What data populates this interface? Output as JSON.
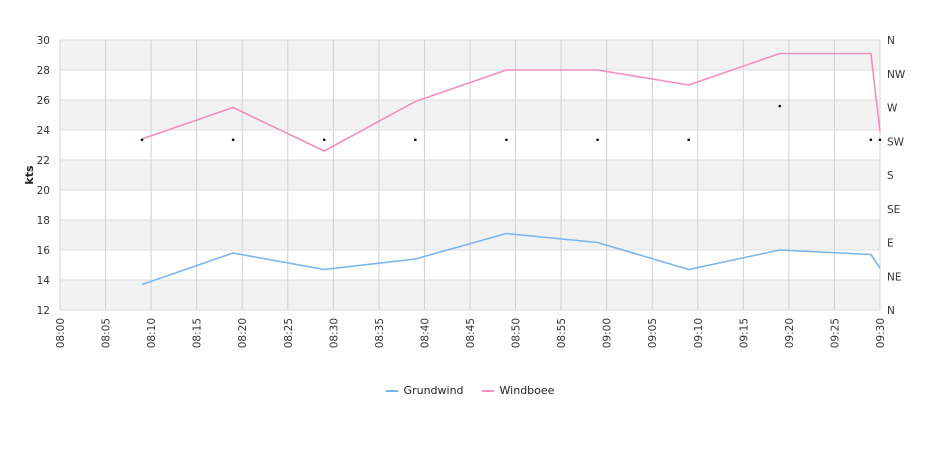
{
  "chart_data": {
    "type": "line",
    "ylabel": "kts",
    "ylim": [
      12,
      30
    ],
    "yticks": [
      12,
      14,
      16,
      18,
      20,
      22,
      24,
      26,
      28,
      30
    ],
    "xlim_minutes": [
      480,
      570
    ],
    "xticks": [
      "08:00",
      "08:05",
      "08:10",
      "08:15",
      "08:20",
      "08:25",
      "08:30",
      "08:35",
      "08:40",
      "08:45",
      "08:50",
      "08:55",
      "09:00",
      "09:05",
      "09:10",
      "09:15",
      "09:20",
      "09:25",
      "09:30"
    ],
    "grid": true,
    "right_axis": {
      "labels": [
        "N",
        "NW",
        "W",
        "SW",
        "S",
        "SE",
        "E",
        "NE",
        "N"
      ]
    },
    "x": [
      "08:09",
      "08:19",
      "08:29",
      "08:39",
      "08:49",
      "08:59",
      "09:09",
      "09:19",
      "09:29",
      "09:30"
    ],
    "series": [
      {
        "name": "Grundwind",
        "color": "#7cb5ec",
        "values": [
          13.7,
          15.8,
          14.7,
          15.4,
          17.1,
          16.5,
          14.7,
          16.0,
          15.7,
          14.8
        ]
      },
      {
        "name": "Windboee",
        "color": "#f28fbf",
        "values": [
          23.4,
          25.5,
          22.6,
          25.9,
          28.0,
          28.0,
          27.0,
          29.1,
          29.1,
          23.9
        ]
      }
    ],
    "direction_markers": {
      "x": [
        "08:09",
        "08:19",
        "08:29",
        "08:39",
        "08:49",
        "08:59",
        "09:09",
        "09:19",
        "09:29",
        "09:30"
      ],
      "values": [
        "SW",
        "SW",
        "SW",
        "SW",
        "SW",
        "SW",
        "SW",
        "W",
        "SW",
        "SW"
      ]
    },
    "legend_position": "bottom-center"
  }
}
